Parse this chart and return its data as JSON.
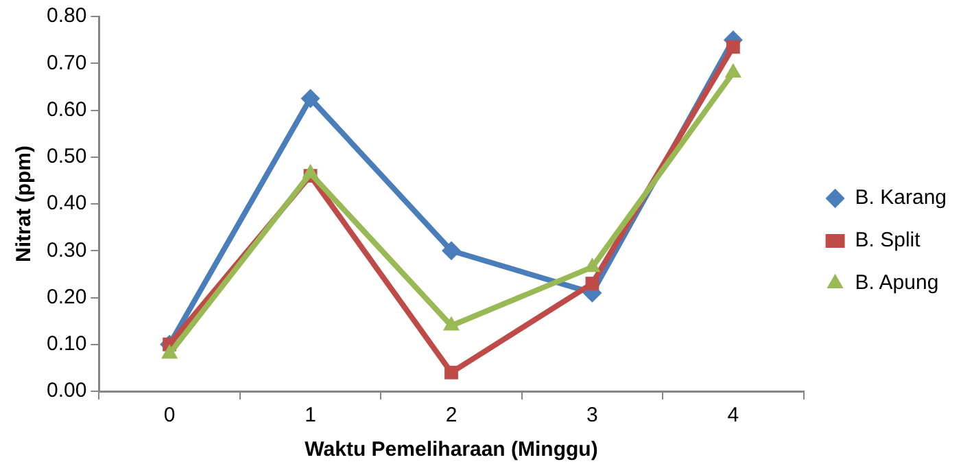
{
  "chart_data": {
    "type": "line",
    "xlabel": "Waktu Pemeliharaan (Minggu)",
    "ylabel": "Nitrat (ppm)",
    "categories": [
      "0",
      "1",
      "2",
      "3",
      "4"
    ],
    "series": [
      {
        "name": "B. Karang",
        "color": "#4a7ebb",
        "marker": "diamond",
        "values": [
          0.1,
          0.625,
          0.3,
          0.21,
          0.75
        ]
      },
      {
        "name": "B. Split",
        "color": "#be4b48",
        "marker": "square",
        "values": [
          0.1,
          0.46,
          0.04,
          0.23,
          0.735
        ]
      },
      {
        "name": "B. Apung",
        "color": "#98b954",
        "marker": "triangle",
        "values": [
          0.08,
          0.465,
          0.14,
          0.265,
          0.68
        ]
      }
    ],
    "ylim": [
      0,
      0.8
    ],
    "yticks": [
      {
        "value": 0,
        "label": "0.00"
      },
      {
        "value": 0.1,
        "label": "0.10"
      },
      {
        "value": 0.2,
        "label": "0.20"
      },
      {
        "value": 0.3,
        "label": "0.30"
      },
      {
        "value": 0.4,
        "label": "0.40"
      },
      {
        "value": 0.5,
        "label": "0.50"
      },
      {
        "value": 0.6,
        "label": "0.60"
      },
      {
        "value": 0.7,
        "label": "0.70"
      },
      {
        "value": 0.8,
        "label": "0.80"
      }
    ],
    "grid": false,
    "legend": "right",
    "line_style": "solid"
  }
}
